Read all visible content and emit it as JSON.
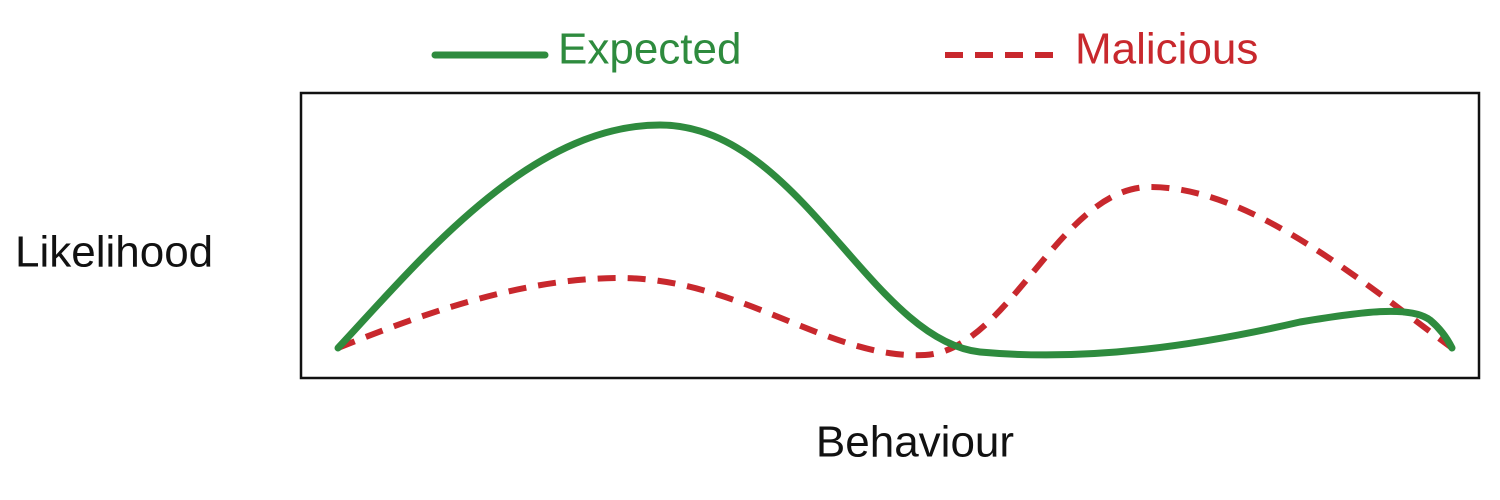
{
  "legend": [
    {
      "label": "Expected"
    },
    {
      "label": "Malicious"
    }
  ],
  "axes": {
    "y_label": "Likelihood",
    "x_label": "Behaviour"
  }
}
